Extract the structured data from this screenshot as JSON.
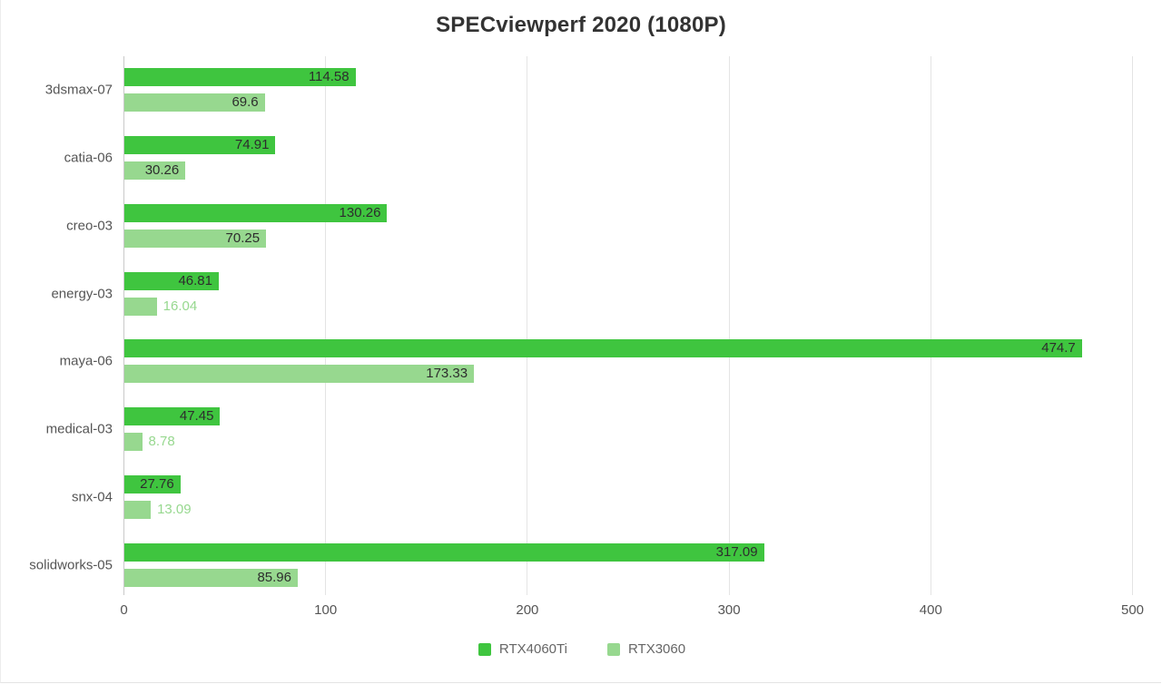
{
  "chart_data": {
    "type": "bar",
    "orientation": "horizontal",
    "title": "SPECviewperf 2020 (1080P)",
    "categories": [
      "3dsmax-07",
      "catia-06",
      "creo-03",
      "energy-03",
      "maya-06",
      "medical-03",
      "snx-04",
      "solidworks-05"
    ],
    "series": [
      {
        "name": "RTX4060Ti",
        "color": "#3fc53f",
        "values": [
          114.58,
          74.91,
          130.26,
          46.81,
          474.7,
          47.45,
          27.76,
          317.09
        ]
      },
      {
        "name": "RTX3060",
        "color": "#97d88f",
        "values": [
          69.6,
          30.26,
          70.25,
          16.04,
          173.33,
          8.78,
          13.09,
          85.96
        ]
      }
    ],
    "xlim": [
      0,
      500
    ],
    "x_ticks": [
      0,
      100,
      200,
      300,
      400,
      500
    ],
    "grid": true,
    "legend_position": "bottom",
    "value_labels": "end-of-bar"
  },
  "styles": {
    "title_color": "#333333",
    "category_label_color": "#555555",
    "tick_label_color": "#555555",
    "legend_text_color": "#666666",
    "grid_color": "#e4e4e4",
    "axis_color": "#c9c9c9",
    "value_inside_color": "#2d2d2d"
  }
}
